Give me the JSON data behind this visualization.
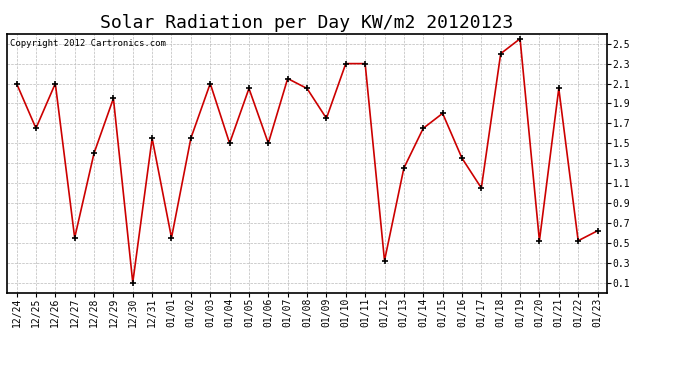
{
  "title": "Solar Radiation per Day KW/m2 20120123",
  "copyright_text": "Copyright 2012 Cartronics.com",
  "labels": [
    "12/24",
    "12/25",
    "12/26",
    "12/27",
    "12/28",
    "12/29",
    "12/30",
    "12/31",
    "01/01",
    "01/02",
    "01/03",
    "01/04",
    "01/05",
    "01/06",
    "01/07",
    "01/08",
    "01/09",
    "01/10",
    "01/11",
    "01/12",
    "01/13",
    "01/14",
    "01/15",
    "01/16",
    "01/17",
    "01/18",
    "01/19",
    "01/20",
    "01/21",
    "01/22",
    "01/23"
  ],
  "values": [
    2.1,
    1.65,
    2.1,
    0.55,
    1.4,
    1.95,
    0.1,
    1.55,
    0.55,
    1.55,
    2.1,
    1.5,
    2.05,
    1.5,
    2.15,
    2.05,
    1.75,
    2.3,
    2.3,
    0.32,
    1.25,
    1.65,
    1.8,
    1.35,
    1.05,
    2.4,
    2.55,
    0.52,
    2.05,
    0.52,
    0.62
  ],
  "line_color": "#cc0000",
  "marker_color": "#000000",
  "bg_color": "#ffffff",
  "plot_bg_color": "#ffffff",
  "grid_color": "#bbbbbb",
  "ylim": [
    0.0,
    2.6
  ],
  "yticks": [
    0.1,
    0.3,
    0.5,
    0.7,
    0.9,
    1.1,
    1.3,
    1.5,
    1.7,
    1.9,
    2.1,
    2.3,
    2.5
  ],
  "title_fontsize": 13,
  "tick_fontsize": 7,
  "copyright_fontsize": 6.5
}
